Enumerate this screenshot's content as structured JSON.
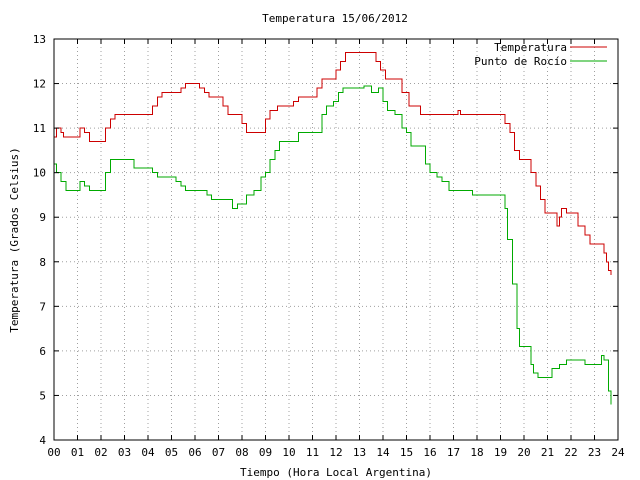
{
  "chart_data": {
    "type": "line",
    "title": "Temperatura 15/06/2012",
    "xlabel": "Tiempo (Hora Local Argentina)",
    "ylabel": "Temperatura (Grados Celsius)",
    "xlim": [
      0,
      24
    ],
    "ylim": [
      4,
      13
    ],
    "x_tick_labels": [
      "00",
      "01",
      "02",
      "03",
      "04",
      "05",
      "06",
      "07",
      "08",
      "09",
      "10",
      "11",
      "12",
      "13",
      "14",
      "15",
      "16",
      "17",
      "18",
      "19",
      "20",
      "21",
      "22",
      "23",
      "24"
    ],
    "y_tick_labels": [
      "4",
      "5",
      "6",
      "7",
      "8",
      "9",
      "10",
      "11",
      "12",
      "13"
    ],
    "grid": true,
    "legend_position": "top-right",
    "series": [
      {
        "name": "Temperatura",
        "color": "#cc0000",
        "points": [
          [
            0.0,
            10.8
          ],
          [
            0.1,
            11.0
          ],
          [
            0.3,
            10.9
          ],
          [
            0.4,
            10.8
          ],
          [
            1.0,
            10.8
          ],
          [
            1.1,
            11.0
          ],
          [
            1.3,
            10.9
          ],
          [
            1.5,
            10.7
          ],
          [
            2.0,
            10.7
          ],
          [
            2.2,
            11.0
          ],
          [
            2.4,
            11.2
          ],
          [
            2.6,
            11.3
          ],
          [
            4.0,
            11.3
          ],
          [
            4.2,
            11.5
          ],
          [
            4.4,
            11.7
          ],
          [
            4.6,
            11.8
          ],
          [
            5.2,
            11.8
          ],
          [
            5.4,
            11.9
          ],
          [
            5.6,
            12.0
          ],
          [
            6.0,
            12.0
          ],
          [
            6.2,
            11.9
          ],
          [
            6.4,
            11.8
          ],
          [
            6.6,
            11.7
          ],
          [
            7.0,
            11.7
          ],
          [
            7.2,
            11.5
          ],
          [
            7.4,
            11.3
          ],
          [
            7.8,
            11.3
          ],
          [
            8.0,
            11.1
          ],
          [
            8.2,
            10.9
          ],
          [
            8.8,
            10.9
          ],
          [
            9.0,
            11.2
          ],
          [
            9.2,
            11.4
          ],
          [
            9.5,
            11.5
          ],
          [
            10.0,
            11.5
          ],
          [
            10.2,
            11.6
          ],
          [
            10.4,
            11.7
          ],
          [
            11.0,
            11.7
          ],
          [
            11.2,
            11.9
          ],
          [
            11.4,
            12.1
          ],
          [
            11.8,
            12.1
          ],
          [
            12.0,
            12.3
          ],
          [
            12.2,
            12.5
          ],
          [
            12.4,
            12.7
          ],
          [
            13.5,
            12.7
          ],
          [
            13.7,
            12.5
          ],
          [
            13.9,
            12.3
          ],
          [
            14.1,
            12.1
          ],
          [
            14.6,
            12.1
          ],
          [
            14.8,
            11.8
          ],
          [
            15.1,
            11.5
          ],
          [
            15.5,
            11.5
          ],
          [
            15.6,
            11.3
          ],
          [
            17.0,
            11.3
          ],
          [
            17.2,
            11.4
          ],
          [
            17.3,
            11.3
          ],
          [
            19.0,
            11.3
          ],
          [
            19.2,
            11.1
          ],
          [
            19.4,
            10.9
          ],
          [
            19.6,
            10.5
          ],
          [
            19.8,
            10.3
          ],
          [
            20.2,
            10.3
          ],
          [
            20.3,
            10.0
          ],
          [
            20.5,
            9.7
          ],
          [
            20.7,
            9.4
          ],
          [
            20.9,
            9.1
          ],
          [
            21.3,
            9.1
          ],
          [
            21.4,
            8.8
          ],
          [
            21.5,
            9.0
          ],
          [
            21.6,
            9.2
          ],
          [
            21.8,
            9.1
          ],
          [
            22.1,
            9.1
          ],
          [
            22.3,
            8.8
          ],
          [
            22.6,
            8.6
          ],
          [
            22.8,
            8.4
          ],
          [
            23.3,
            8.4
          ],
          [
            23.4,
            8.2
          ],
          [
            23.5,
            8.0
          ],
          [
            23.6,
            7.8
          ],
          [
            23.7,
            7.7
          ]
        ]
      },
      {
        "name": "Punto de Rocío",
        "color": "#00aa00",
        "points": [
          [
            0.0,
            10.2
          ],
          [
            0.1,
            10.0
          ],
          [
            0.3,
            9.8
          ],
          [
            0.5,
            9.6
          ],
          [
            1.0,
            9.6
          ],
          [
            1.1,
            9.8
          ],
          [
            1.3,
            9.7
          ],
          [
            1.5,
            9.6
          ],
          [
            2.0,
            9.6
          ],
          [
            2.2,
            10.0
          ],
          [
            2.4,
            10.3
          ],
          [
            2.6,
            10.3
          ],
          [
            3.2,
            10.3
          ],
          [
            3.4,
            10.1
          ],
          [
            4.0,
            10.1
          ],
          [
            4.2,
            10.0
          ],
          [
            4.4,
            9.9
          ],
          [
            5.0,
            9.9
          ],
          [
            5.2,
            9.8
          ],
          [
            5.4,
            9.7
          ],
          [
            5.6,
            9.6
          ],
          [
            6.3,
            9.6
          ],
          [
            6.5,
            9.5
          ],
          [
            6.7,
            9.4
          ],
          [
            7.5,
            9.4
          ],
          [
            7.6,
            9.2
          ],
          [
            7.8,
            9.3
          ],
          [
            8.2,
            9.5
          ],
          [
            8.5,
            9.6
          ],
          [
            8.8,
            9.9
          ],
          [
            9.0,
            10.0
          ],
          [
            9.2,
            10.3
          ],
          [
            9.4,
            10.5
          ],
          [
            9.6,
            10.7
          ],
          [
            10.2,
            10.7
          ],
          [
            10.4,
            10.9
          ],
          [
            11.2,
            10.9
          ],
          [
            11.4,
            11.3
          ],
          [
            11.6,
            11.5
          ],
          [
            11.9,
            11.6
          ],
          [
            12.1,
            11.8
          ],
          [
            12.3,
            11.9
          ],
          [
            13.0,
            11.9
          ],
          [
            13.2,
            11.95
          ],
          [
            13.5,
            11.8
          ],
          [
            13.8,
            11.9
          ],
          [
            14.0,
            11.6
          ],
          [
            14.2,
            11.4
          ],
          [
            14.5,
            11.3
          ],
          [
            14.8,
            11.0
          ],
          [
            15.0,
            10.9
          ],
          [
            15.2,
            10.6
          ],
          [
            15.6,
            10.6
          ],
          [
            15.8,
            10.2
          ],
          [
            16.0,
            10.0
          ],
          [
            16.3,
            9.9
          ],
          [
            16.5,
            9.8
          ],
          [
            16.8,
            9.6
          ],
          [
            17.6,
            9.6
          ],
          [
            17.8,
            9.5
          ],
          [
            19.0,
            9.5
          ],
          [
            19.2,
            9.2
          ],
          [
            19.3,
            8.5
          ],
          [
            19.5,
            7.5
          ],
          [
            19.7,
            6.5
          ],
          [
            19.8,
            6.1
          ],
          [
            20.2,
            6.1
          ],
          [
            20.3,
            5.7
          ],
          [
            20.4,
            5.5
          ],
          [
            20.6,
            5.4
          ],
          [
            21.0,
            5.4
          ],
          [
            21.2,
            5.6
          ],
          [
            21.5,
            5.7
          ],
          [
            21.8,
            5.8
          ],
          [
            22.5,
            5.8
          ],
          [
            22.6,
            5.7
          ],
          [
            23.2,
            5.7
          ],
          [
            23.3,
            5.9
          ],
          [
            23.4,
            5.8
          ],
          [
            23.6,
            5.1
          ],
          [
            23.7,
            4.8
          ]
        ]
      }
    ]
  }
}
